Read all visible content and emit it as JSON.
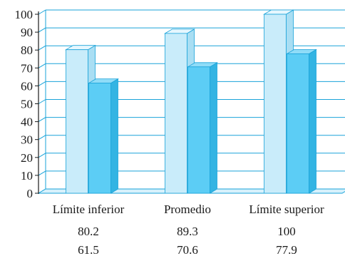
{
  "chart_data": {
    "type": "bar",
    "style": "3d-clustered",
    "categories": [
      "Límite inferior",
      "Promedio",
      "Límite superior"
    ],
    "series": [
      {
        "values": [
          80.2,
          89.3,
          100
        ],
        "color": "#c9ecfa"
      },
      {
        "values": [
          61.5,
          70.6,
          77.9
        ],
        "color": "#5ccdf5"
      }
    ],
    "yticks": [
      "0",
      "10",
      "20",
      "30",
      "40",
      "50",
      "60",
      "70",
      "80",
      "90",
      "100"
    ],
    "ylim": [
      0,
      100
    ],
    "grid": true,
    "axis_color": "#1aa3d9",
    "value_rows": [
      [
        "80.2",
        "89.3",
        "100"
      ],
      [
        "61.5",
        "70.6",
        "77.9"
      ]
    ]
  }
}
